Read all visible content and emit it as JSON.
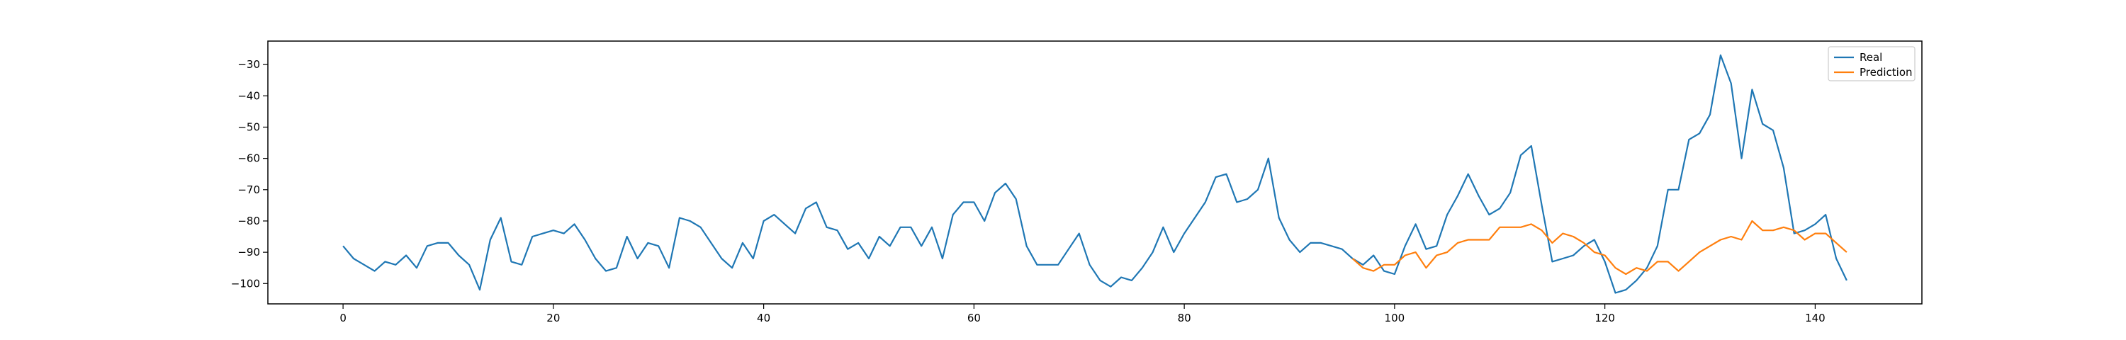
{
  "chart_data": {
    "type": "line",
    "title": "",
    "xlabel": "",
    "ylabel": "",
    "xlim": [
      -7.15,
      150.15
    ],
    "ylim": [
      -106.5,
      -22.5
    ],
    "xticks": [
      0,
      20,
      40,
      60,
      80,
      100,
      120,
      140
    ],
    "yticks": [
      -100,
      -90,
      -80,
      -70,
      -60,
      -50,
      -40,
      -30
    ],
    "grid": false,
    "legend_position": "top-right",
    "series": [
      {
        "name": "Real",
        "color": "#1f77b4",
        "x_start": 0,
        "values": [
          -88,
          -92,
          -94,
          -96,
          -93,
          -94,
          -91,
          -95,
          -88,
          -87,
          -87,
          -91,
          -94,
          -102,
          -86,
          -79,
          -93,
          -94,
          -85,
          -84,
          -83,
          -84,
          -81,
          -86,
          -92,
          -96,
          -95,
          -85,
          -92,
          -87,
          -88,
          -95,
          -79,
          -80,
          -82,
          -87,
          -92,
          -95,
          -87,
          -92,
          -80,
          -78,
          -81,
          -84,
          -76,
          -74,
          -82,
          -83,
          -89,
          -87,
          -92,
          -85,
          -88,
          -82,
          -82,
          -88,
          -82,
          -92,
          -78,
          -74,
          -74,
          -80,
          -71,
          -68,
          -73,
          -88,
          -94,
          -94,
          -94,
          -89,
          -84,
          -94,
          -99,
          -101,
          -98,
          -99,
          -95,
          -90,
          -82,
          -90,
          -84,
          -79,
          -74,
          -66,
          -65,
          -74,
          -73,
          -70,
          -60,
          -79,
          -86,
          -90,
          -87,
          -87,
          -88,
          -89,
          -92,
          -94,
          -91,
          -96,
          -97,
          -88,
          -81,
          -89,
          -88,
          -78,
          -72,
          -65,
          -72,
          -78,
          -76,
          -71,
          -59,
          -56,
          -75,
          -93,
          -92,
          -91,
          -88,
          -86,
          -93,
          -103,
          -102,
          -99,
          -95,
          -88,
          -70,
          -70,
          -54,
          -52,
          -46,
          -27,
          -36,
          -60,
          -38,
          -49,
          -51,
          -63,
          -84,
          -83,
          -81,
          -78,
          -92,
          -99
        ]
      },
      {
        "name": "Prediction",
        "color": "#ff7f0e",
        "x_start": 96,
        "values": [
          -92,
          -95,
          -96,
          -94,
          -94,
          -91,
          -90,
          -95,
          -91,
          -90,
          -87,
          -86,
          -86,
          -86,
          -82,
          -82,
          -82,
          -81,
          -83,
          -87,
          -84,
          -85,
          -87,
          -90,
          -91,
          -95,
          -97,
          -95,
          -96,
          -93,
          -93,
          -96,
          -93,
          -90,
          -88,
          -86,
          -85,
          -86,
          -80,
          -83,
          -83,
          -82,
          -83,
          -86,
          -84,
          -84,
          -87,
          -90
        ]
      }
    ]
  }
}
